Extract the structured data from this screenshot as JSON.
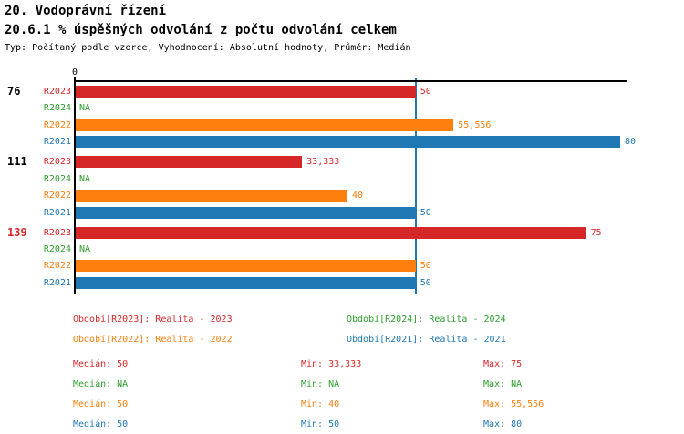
{
  "header": {
    "title": "20. Vodoprávní řízení",
    "subtitle": "20.6.1 % úspěšných odvolání z počtu odvolání celkem",
    "meta": "Typ: Počítaný podle vzorce, Vyhodnocení: Absolutní hodnoty, Průměr: Medián"
  },
  "colors": {
    "R2023": "#d62728",
    "R2024": "#2ca02c",
    "R2022": "#ff7f0e",
    "R2021": "#1f77b4",
    "axis": "#000000",
    "median_line": "#1f77b4",
    "highlight_group_label": "#d62728",
    "normal_group_label": "#000000"
  },
  "chart_data": {
    "type": "bar",
    "orientation": "horizontal",
    "title": "20.6.1 % úspěšných odvolání z počtu odvolání celkem",
    "x_axis": {
      "origin_label": "0",
      "min": 0,
      "max": 81,
      "grid": false
    },
    "median_marker_value": 50,
    "series_order": [
      "R2023",
      "R2024",
      "R2022",
      "R2021"
    ],
    "groups": [
      {
        "label": "76",
        "highlighted": false,
        "bars": [
          {
            "series": "R2023",
            "value": 50,
            "display": "50"
          },
          {
            "series": "R2024",
            "value": null,
            "display": "NA"
          },
          {
            "series": "R2022",
            "value": 55.556,
            "display": "55,556"
          },
          {
            "series": "R2021",
            "value": 80,
            "display": "80"
          }
        ]
      },
      {
        "label": "111",
        "highlighted": false,
        "bars": [
          {
            "series": "R2023",
            "value": 33.333,
            "display": "33,333"
          },
          {
            "series": "R2024",
            "value": null,
            "display": "NA"
          },
          {
            "series": "R2022",
            "value": 40,
            "display": "40"
          },
          {
            "series": "R2021",
            "value": 50,
            "display": "50"
          }
        ]
      },
      {
        "label": "139",
        "highlighted": true,
        "bars": [
          {
            "series": "R2023",
            "value": 75,
            "display": "75"
          },
          {
            "series": "R2024",
            "value": null,
            "display": "NA"
          },
          {
            "series": "R2022",
            "value": 50,
            "display": "50"
          },
          {
            "series": "R2021",
            "value": 50,
            "display": "50"
          }
        ]
      }
    ]
  },
  "legend": {
    "items": [
      {
        "series": "R2023",
        "label": "Období[R2023]: Realita - 2023",
        "color": "#d62728"
      },
      {
        "series": "R2024",
        "label": "Období[R2024]: Realita - 2024",
        "color": "#2ca02c"
      },
      {
        "series": "R2022",
        "label": "Období[R2022]: Realita - 2022",
        "color": "#ff7f0e"
      },
      {
        "series": "R2021",
        "label": "Období[R2021]: Realita - 2021",
        "color": "#1f77b4"
      }
    ]
  },
  "stats": {
    "rows": [
      {
        "series": "R2023",
        "color": "#d62728",
        "median": "Medián: 50",
        "min": "Min: 33,333",
        "max": "Max: 75"
      },
      {
        "series": "R2024",
        "color": "#2ca02c",
        "median": "Medián: NA",
        "min": "Min: NA",
        "max": "Max: NA"
      },
      {
        "series": "R2022",
        "color": "#ff7f0e",
        "median": "Medián: 50",
        "min": "Min: 40",
        "max": "Max: 55,556"
      },
      {
        "series": "R2021",
        "color": "#1f77b4",
        "median": "Medián: 50",
        "min": "Min: 50",
        "max": "Max: 80"
      }
    ]
  }
}
